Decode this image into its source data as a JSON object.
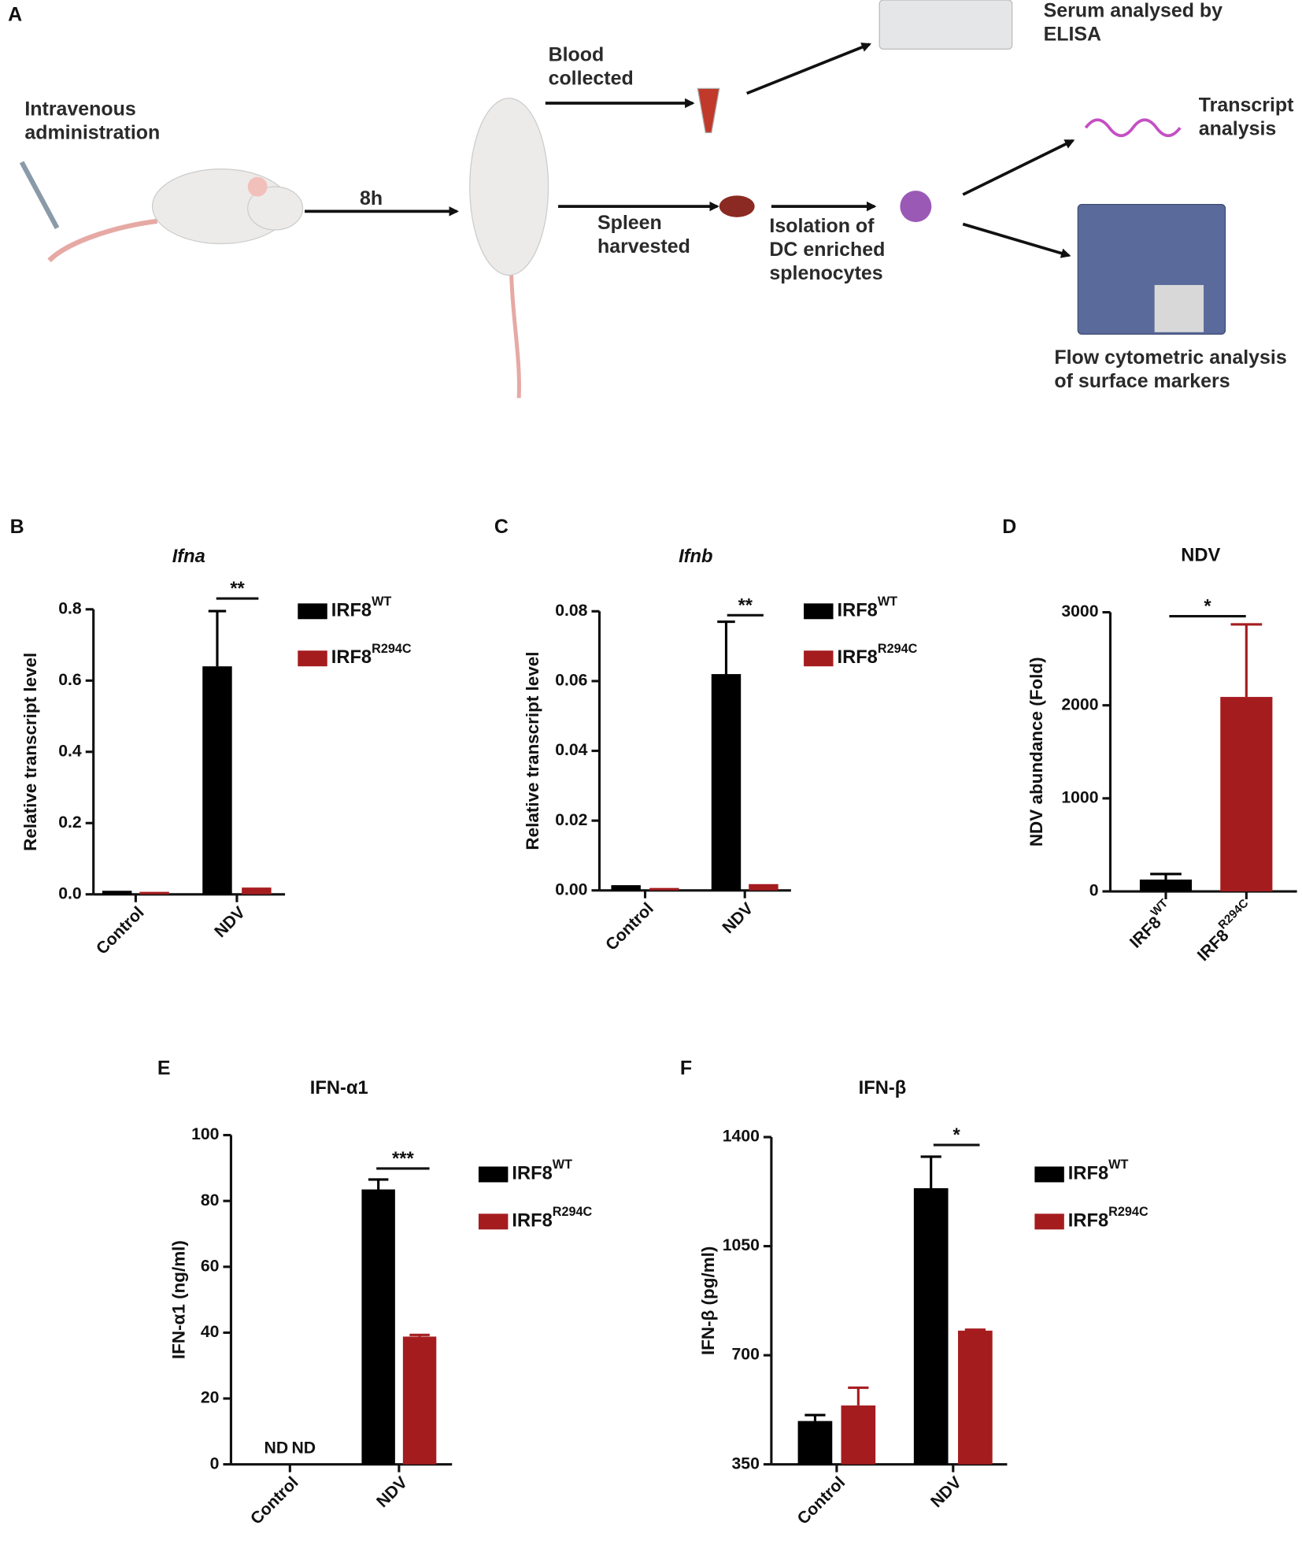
{
  "panel_a": {
    "label": "A",
    "texts": [
      {
        "lines": [
          "Intravenous",
          "administration"
        ]
      },
      {
        "lines": [
          "8h"
        ]
      },
      {
        "lines": [
          "Blood",
          "collected"
        ]
      },
      {
        "lines": [
          "Spleen",
          "harvested"
        ]
      },
      {
        "lines": [
          "Isolation of",
          "DC enriched",
          "splenocytes"
        ]
      },
      {
        "lines": [
          "Serum analysed by",
          "ELISA"
        ]
      },
      {
        "lines": [
          "Transcript",
          "analysis"
        ]
      },
      {
        "lines": [
          "Flow cytometric analysis",
          "of surface markers"
        ]
      }
    ]
  },
  "chart_data": [
    {
      "type": "bar",
      "label": "B",
      "title": "Ifna",
      "title_italic": true,
      "ylabel": "Relative transcript level",
      "categories": [
        "Control",
        "NDV"
      ],
      "series": [
        {
          "name": "IRF8",
          "name_superscript": "WT",
          "color": "#000000",
          "values": [
            0.01,
            0.64
          ],
          "errors": [
            null,
            0.155
          ]
        },
        {
          "name": "IRF8",
          "name_superscript": "R294C",
          "color": "#a51c1f",
          "values": [
            0.007,
            0.019
          ],
          "errors": [
            null,
            null
          ]
        }
      ],
      "ylim": [
        0,
        0.8
      ],
      "yticks": [
        {
          "value": 0,
          "label": "0.0"
        },
        0.2,
        0.4,
        0.6,
        0.8
      ],
      "annotations": [
        "**"
      ]
    },
    {
      "type": "bar",
      "label": "C",
      "title": "Ifnb",
      "title_italic": true,
      "ylabel": "Relative transcript level",
      "categories": [
        "Control",
        "NDV"
      ],
      "series": [
        {
          "name": "IRF8",
          "name_superscript": "WT",
          "color": "#000000",
          "values": [
            0.0015,
            0.062
          ],
          "errors": [
            null,
            0.015
          ]
        },
        {
          "name": "IRF8",
          "name_superscript": "R294C",
          "color": "#a51c1f",
          "values": [
            0.0007,
            0.0018
          ],
          "errors": [
            null,
            null
          ]
        }
      ],
      "ylim": [
        0,
        0.08
      ],
      "yticks": [
        {
          "value": 0,
          "label": "0.00"
        },
        0.02,
        0.04,
        0.06,
        0.08
      ],
      "annotations": [
        "**"
      ]
    },
    {
      "type": "bar",
      "label": "D",
      "title": "NDV",
      "title_italic": false,
      "ylabel": "NDV abundance (Fold)",
      "categories": [
        "IRF8",
        "IRF8"
      ],
      "category_superscripts": [
        "WT",
        "R294C"
      ],
      "values": [
        127,
        2090
      ],
      "errors": [
        60,
        780
      ],
      "colors": [
        "#000000",
        "#a51c1f"
      ],
      "ylim": [
        0,
        3000
      ],
      "yticks": [
        0,
        1000,
        2000,
        3000
      ],
      "annotations": [
        "*"
      ]
    },
    {
      "type": "bar",
      "label": "E",
      "title": "IFN-α1",
      "title_italic": false,
      "ylabel": "IFN-α1 (ng/ml)",
      "categories": [
        "Control",
        "NDV"
      ],
      "series": [
        {
          "name": "IRF8",
          "name_superscript": "WT",
          "color": "#000000",
          "values": [
            null,
            83.5
          ],
          "value_labels": [
            "ND",
            null
          ],
          "errors": [
            null,
            3
          ]
        },
        {
          "name": "IRF8",
          "name_superscript": "R294C",
          "color": "#a51c1f",
          "values": [
            null,
            38.8
          ],
          "value_labels": [
            "ND",
            null
          ],
          "errors": [
            null,
            0.5
          ]
        }
      ],
      "ylim": [
        0,
        100
      ],
      "yticks": [
        0,
        20,
        40,
        60,
        80,
        100
      ],
      "annotations": [
        "***"
      ]
    },
    {
      "type": "bar",
      "label": "F",
      "title": "IFN-β",
      "title_italic": false,
      "ylabel": "IFN-β (pg/ml)",
      "categories": [
        "Control",
        "NDV"
      ],
      "series": [
        {
          "name": "IRF8",
          "name_superscript": "WT",
          "color": "#000000",
          "values": [
            489,
            1236
          ],
          "errors": [
            19,
            101
          ]
        },
        {
          "name": "IRF8",
          "name_superscript": "R294C",
          "color": "#a51c1f",
          "values": [
            539,
            779
          ],
          "errors": [
            57,
            3
          ]
        }
      ],
      "ylim": [
        350,
        1400
      ],
      "yticks": [
        350,
        700,
        1050,
        1400
      ],
      "annotations": [
        "*"
      ]
    }
  ]
}
